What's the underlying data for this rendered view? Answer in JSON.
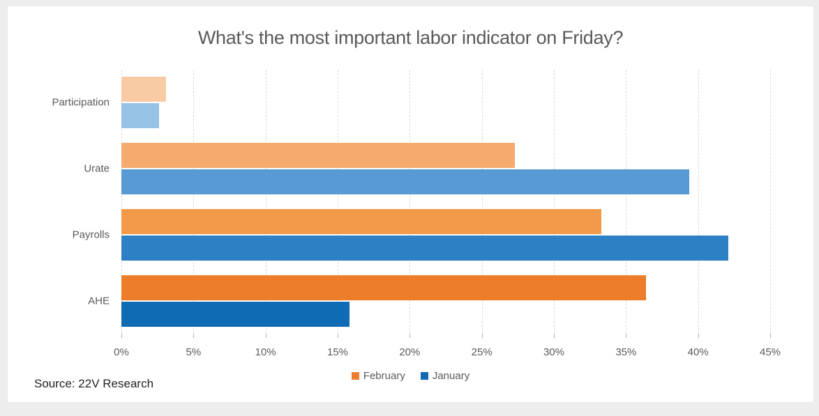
{
  "chart_data": {
    "type": "bar",
    "orientation": "horizontal",
    "title": "What's the most important labor indicator on Friday?",
    "categories": [
      "Participation",
      "Urate",
      "Payrolls",
      "AHE"
    ],
    "series": [
      {
        "name": "February",
        "values": [
          3.1,
          27.3,
          33.3,
          36.4
        ],
        "bar_colors": [
          "#F8CBA4",
          "#F5AB6E",
          "#F29A49",
          "#ED7D28"
        ],
        "legend_color": "#ED7D31"
      },
      {
        "name": "January",
        "values": [
          2.6,
          39.4,
          42.1,
          15.8
        ],
        "bar_colors": [
          "#95C2E5",
          "#589AD3",
          "#2E80C4",
          "#0E6BB4"
        ],
        "legend_color": "#1268B3"
      }
    ],
    "x_axis": {
      "ticks": [
        "0%",
        "5%",
        "10%",
        "15%",
        "20%",
        "25%",
        "30%",
        "35%",
        "40%",
        "45%"
      ],
      "tick_values": [
        0,
        5,
        10,
        15,
        20,
        25,
        30,
        35,
        40,
        45
      ],
      "min": 0,
      "max": 45
    },
    "gridlines": true,
    "legend_position": "bottom",
    "colors": {
      "title_text": "#595959",
      "axis_text": "#595959",
      "gridline": "#d9d9d9",
      "source_text": "#1f1f1f"
    },
    "source_note": "Source: 22V Research"
  }
}
